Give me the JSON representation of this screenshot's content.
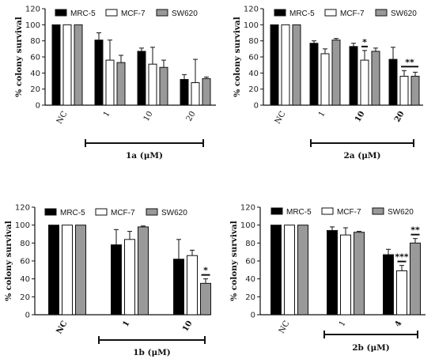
{
  "colors": {
    "MRC-5": "#000000",
    "MCF-7": "#ffffff",
    "SW620": "#999999",
    "axis": "#111111"
  },
  "chart_data": [
    {
      "type": "bar",
      "panel": "1a",
      "title": "",
      "ylabel": "% colony survival",
      "group_label": "1a (μM)",
      "ylim": [
        0,
        120
      ],
      "yticks": [
        "0",
        "20",
        "40",
        "60",
        "80",
        "100",
        "120"
      ],
      "categories": [
        "NC",
        "1",
        "10",
        "20"
      ],
      "bold_categories": [],
      "series": [
        {
          "name": "MRC-5",
          "values": [
            100,
            81,
            67,
            32
          ],
          "errors": [
            0,
            9,
            4,
            6
          ]
        },
        {
          "name": "MCF-7",
          "values": [
            100,
            56,
            51,
            28
          ],
          "errors": [
            0,
            25,
            21,
            29
          ]
        },
        {
          "name": "SW620",
          "values": [
            100,
            53,
            47,
            33
          ],
          "errors": [
            0,
            9,
            9,
            2
          ]
        }
      ],
      "annotations": []
    },
    {
      "type": "bar",
      "panel": "2a",
      "title": "",
      "ylabel": "% colony survival",
      "group_label": "2a (μM)",
      "ylim": [
        0,
        120
      ],
      "yticks": [
        "0",
        "20",
        "40",
        "60",
        "80",
        "100",
        "120"
      ],
      "categories": [
        "NC",
        "1",
        "10",
        "20"
      ],
      "bold_categories": [
        "10",
        "20"
      ],
      "series": [
        {
          "name": "MRC-5",
          "values": [
            100,
            77,
            73,
            57
          ],
          "errors": [
            0,
            3,
            4,
            15
          ]
        },
        {
          "name": "MCF-7",
          "values": [
            100,
            64,
            56,
            36
          ],
          "errors": [
            0,
            6,
            12,
            7
          ]
        },
        {
          "name": "SW620",
          "values": [
            100,
            81,
            67,
            36
          ],
          "errors": [
            0,
            2,
            4,
            5
          ]
        }
      ],
      "annotations": [
        {
          "text": "*",
          "category": "10",
          "series": [
            "MCF-7"
          ]
        },
        {
          "text": "**",
          "category": "20",
          "series": [
            "MCF-7",
            "SW620"
          ]
        }
      ]
    },
    {
      "type": "bar",
      "panel": "1b",
      "title": "",
      "ylabel": "% colony survival",
      "group_label": "1b (μM)",
      "ylim": [
        0,
        120
      ],
      "yticks": [
        "0",
        "20",
        "40",
        "60",
        "80",
        "100",
        "120"
      ],
      "categories": [
        "NC",
        "1",
        "10"
      ],
      "bold_categories": [
        "NC",
        "1",
        "10"
      ],
      "series": [
        {
          "name": "MRC-5",
          "values": [
            100,
            78,
            62
          ],
          "errors": [
            0,
            17,
            22
          ]
        },
        {
          "name": "MCF-7",
          "values": [
            100,
            84,
            66
          ],
          "errors": [
            0,
            9,
            6
          ]
        },
        {
          "name": "SW620",
          "values": [
            100,
            98,
            35
          ],
          "errors": [
            0,
            1,
            5
          ]
        }
      ],
      "annotations": [
        {
          "text": "*",
          "category": "10",
          "series": [
            "SW620"
          ]
        }
      ]
    },
    {
      "type": "bar",
      "panel": "2b",
      "title": "",
      "ylabel": "% colony survival",
      "group_label": "2b (μM)",
      "ylim": [
        0,
        120
      ],
      "yticks": [
        "0",
        "20",
        "40",
        "60",
        "80",
        "100",
        "120"
      ],
      "categories": [
        "NC",
        "1",
        "4"
      ],
      "bold_categories": [
        "4"
      ],
      "series": [
        {
          "name": "MRC-5",
          "values": [
            100,
            94,
            67
          ],
          "errors": [
            0,
            4,
            6
          ]
        },
        {
          "name": "MCF-7",
          "values": [
            100,
            89,
            49
          ],
          "errors": [
            0,
            8,
            6
          ]
        },
        {
          "name": "SW620",
          "values": [
            100,
            92,
            80
          ],
          "errors": [
            0,
            1,
            5
          ]
        }
      ],
      "annotations": [
        {
          "text": "***",
          "category": "4",
          "series": [
            "MCF-7"
          ]
        },
        {
          "text": "**",
          "category": "4",
          "series": [
            "SW620"
          ]
        }
      ]
    }
  ]
}
